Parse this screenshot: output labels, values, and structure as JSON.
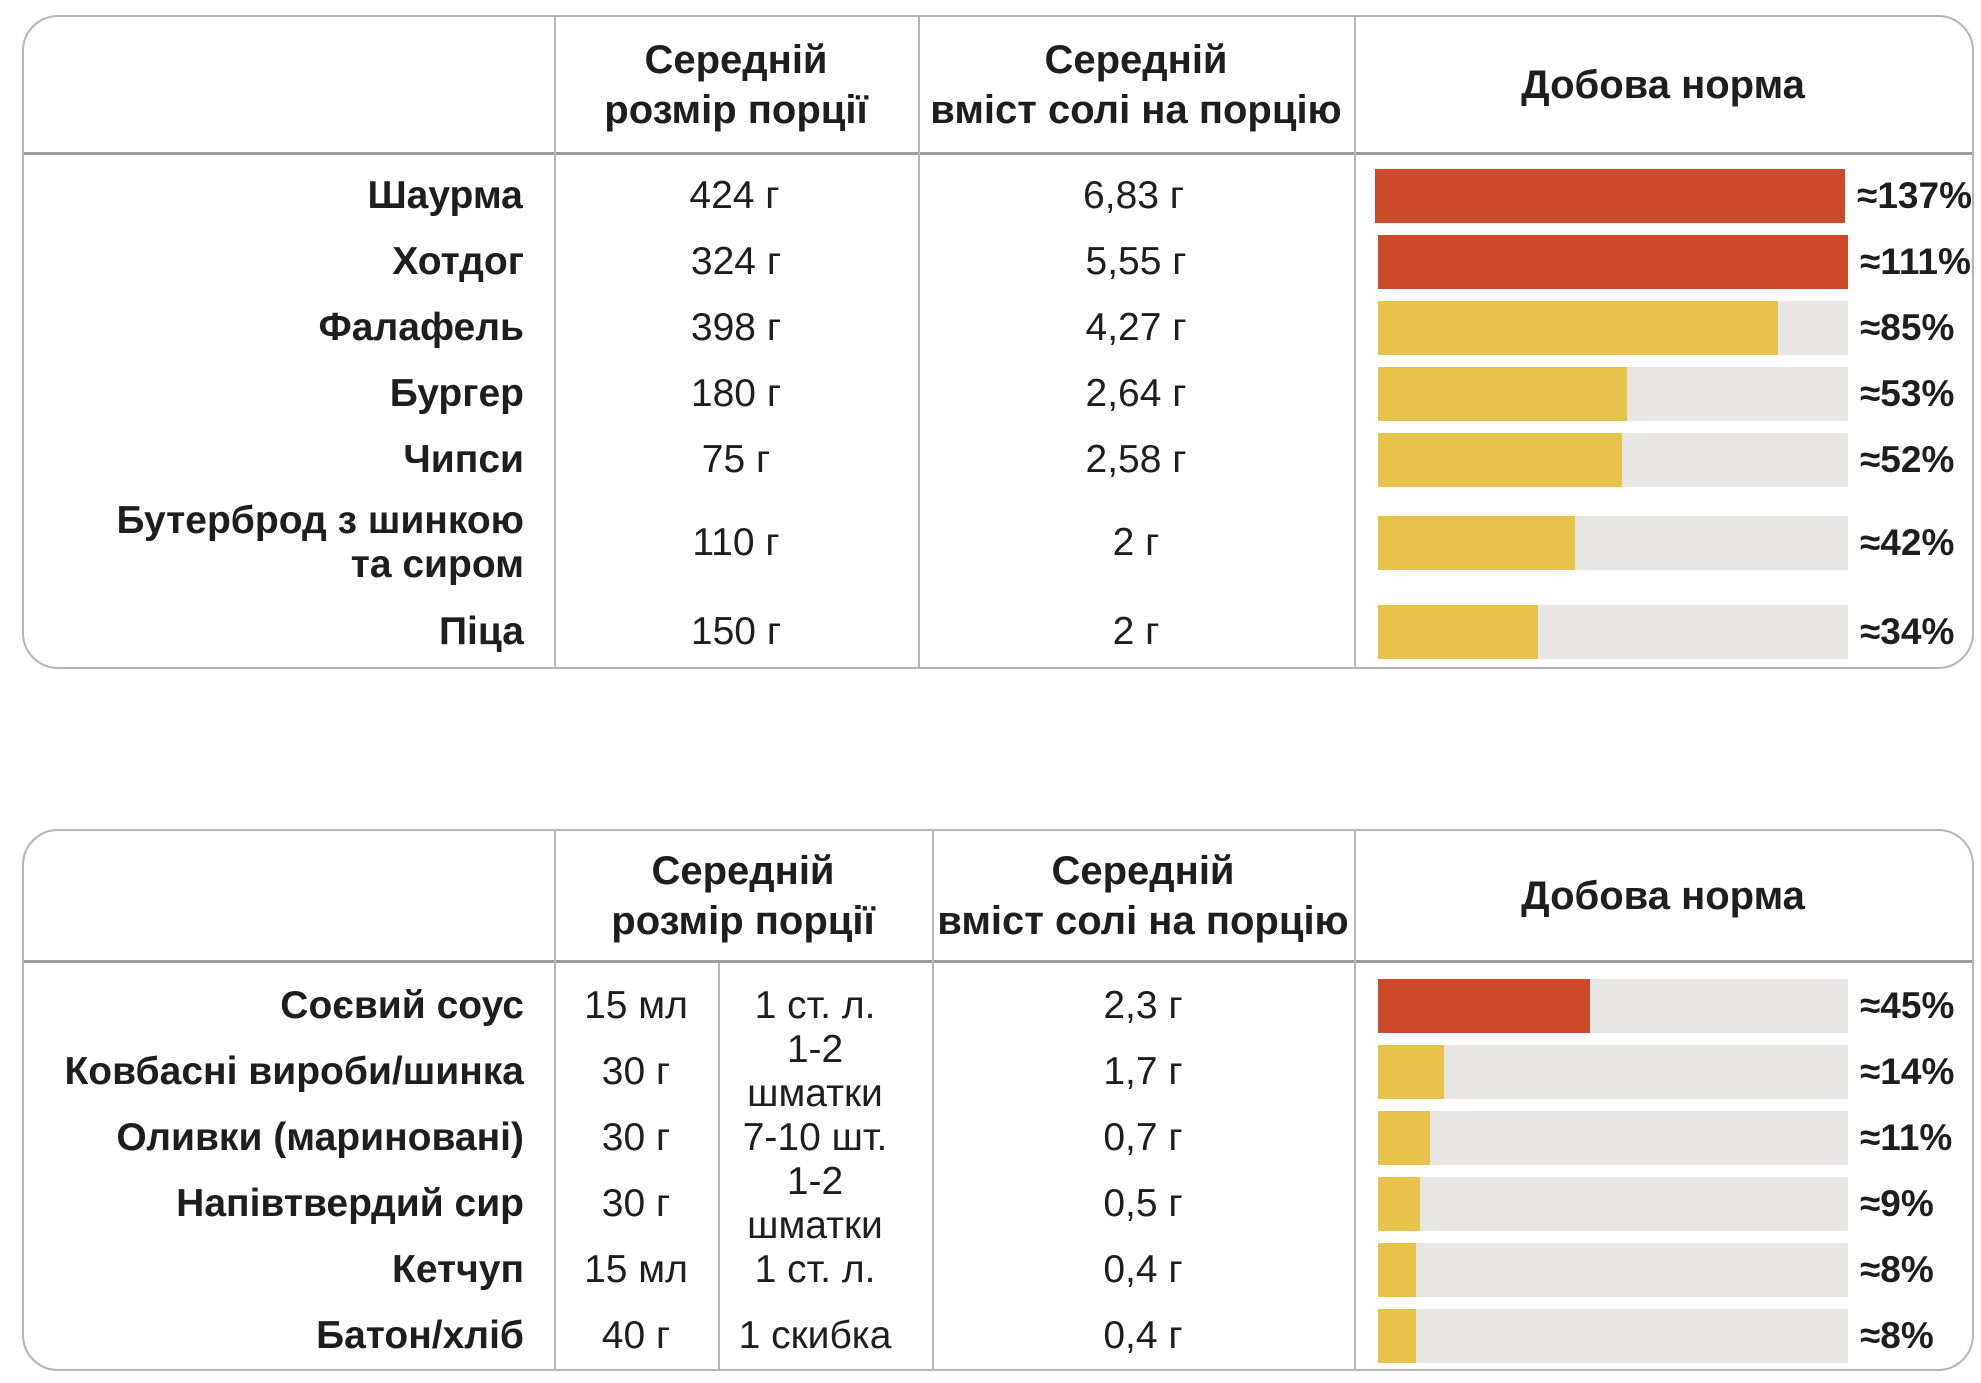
{
  "colors": {
    "bar_red": "#cc4a2a",
    "bar_yellow": "#e8c34c",
    "bar_track": "#e7e6e4",
    "table_border": "#b5b5b5",
    "header_separator": "#9c9c9c",
    "text": "#1e1e1e"
  },
  "tables": [
    {
      "id": "fastfood",
      "headers": {
        "label": "",
        "portion": "Середній\nрозмір порції",
        "salt": "Середній\nвміст солі на порцію",
        "norm": "Добова норма"
      },
      "rows": [
        {
          "label": "Шаурма",
          "portion": "424 г",
          "salt": "6,83 г",
          "percent": 137,
          "percent_label": "≈137%",
          "level": "red"
        },
        {
          "label": "Хотдог",
          "portion": "324 г",
          "salt": "5,55 г",
          "percent": 111,
          "percent_label": "≈111%",
          "level": "red"
        },
        {
          "label": "Фалафель",
          "portion": "398 г",
          "salt": "4,27 г",
          "percent": 85,
          "percent_label": "≈85%",
          "level": "yellow"
        },
        {
          "label": "Бургер",
          "portion": "180 г",
          "salt": "2,64 г",
          "percent": 53,
          "percent_label": "≈53%",
          "level": "yellow"
        },
        {
          "label": "Чипси",
          "portion": "75 г",
          "salt": "2,58 г",
          "percent": 52,
          "percent_label": "≈52%",
          "level": "yellow"
        },
        {
          "label": "Бутерброд з шинкою\nта сиром",
          "portion": "110 г",
          "salt": "2 г",
          "percent": 42,
          "percent_label": "≈42%",
          "level": "yellow"
        },
        {
          "label": "Піца",
          "portion": "150 г",
          "salt": "2 г",
          "percent": 34,
          "percent_label": "≈34%",
          "level": "yellow"
        }
      ]
    },
    {
      "id": "ingredients",
      "headers": {
        "label": "",
        "portion": "Середній\nрозмір порції",
        "salt": "Середній\nвміст солі на порцію",
        "norm": "Добова норма"
      },
      "rows": [
        {
          "label": "Соєвий соус",
          "portion_amount": "15 мл",
          "portion_desc": "1 ст. л.",
          "salt": "2,3 г",
          "percent": 45,
          "percent_label": "≈45%",
          "level": "red"
        },
        {
          "label": "Ковбасні вироби/шинка",
          "portion_amount": "30 г",
          "portion_desc": "1-2 шматки",
          "salt": "1,7 г",
          "percent": 14,
          "percent_label": "≈14%",
          "level": "yellow"
        },
        {
          "label": "Оливки (мариновані)",
          "portion_amount": "30 г",
          "portion_desc": "7-10 шт.",
          "salt": "0,7 г",
          "percent": 11,
          "percent_label": "≈11%",
          "level": "yellow"
        },
        {
          "label": "Напівтвердий сир",
          "portion_amount": "30 г",
          "portion_desc": "1-2 шматки",
          "salt": "0,5 г",
          "percent": 9,
          "percent_label": "≈9%",
          "level": "yellow"
        },
        {
          "label": "Кетчуп",
          "portion_amount": "15 мл",
          "portion_desc": "1 ст. л.",
          "salt": "0,4 г",
          "percent": 8,
          "percent_label": "≈8%",
          "level": "yellow"
        },
        {
          "label": "Батон/хліб",
          "portion_amount": "40 г",
          "portion_desc": "1 скибка",
          "salt": "0,4 г",
          "percent": 8,
          "percent_label": "≈8%",
          "level": "yellow"
        }
      ]
    }
  ],
  "chart_data": [
    {
      "type": "bar",
      "orientation": "horizontal",
      "title": "Добова норма",
      "column_headers": [
        "Середній розмір порції",
        "Середній вміст солі на порцію",
        "Добова норма"
      ],
      "categories": [
        "Шаурма",
        "Хотдог",
        "Фалафель",
        "Бургер",
        "Чипси",
        "Бутерброд з шинкою та сиром",
        "Піца"
      ],
      "portion_sizes": [
        "424 г",
        "324 г",
        "398 г",
        "180 г",
        "75 г",
        "110 г",
        "150 г"
      ],
      "salt_per_portion_g": [
        6.83,
        5.55,
        4.27,
        2.64,
        2.58,
        2,
        2
      ],
      "values": [
        137,
        111,
        85,
        53,
        52,
        42,
        34
      ],
      "value_prefix": "≈",
      "value_unit": "%",
      "bar_scale_max": 100,
      "color_rule": {
        "over_100_percent": "#cc4a2a",
        "under_100_percent": "#e8c34c"
      },
      "grid": false,
      "legend": false
    },
    {
      "type": "bar",
      "orientation": "horizontal",
      "title": "Добова норма",
      "column_headers": [
        "Середній розмір порції",
        "Середній вміст солі на порцію",
        "Добова норма"
      ],
      "categories": [
        "Соєвий соус",
        "Ковбасні вироби/шинка",
        "Оливки (мариновані)",
        "Напівтвердий сир",
        "Кетчуп",
        "Батон/хліб"
      ],
      "portion_sizes": [
        "15 мл",
        "30 г",
        "30 г",
        "30 г",
        "15 мл",
        "40 г"
      ],
      "portion_descriptions": [
        "1 ст. л.",
        "1-2 шматки",
        "7-10 шт.",
        "1-2 шматки",
        "1 ст. л.",
        "1 скибка"
      ],
      "salt_per_portion_g": [
        2.3,
        1.7,
        0.7,
        0.5,
        0.4,
        0.4
      ],
      "values": [
        45,
        14,
        11,
        9,
        8,
        8
      ],
      "value_prefix": "≈",
      "value_unit": "%",
      "bar_scale_max": 100,
      "color_rule": {
        "highlight_first": "#cc4a2a",
        "others": "#e8c34c"
      },
      "grid": false,
      "legend": false
    }
  ]
}
